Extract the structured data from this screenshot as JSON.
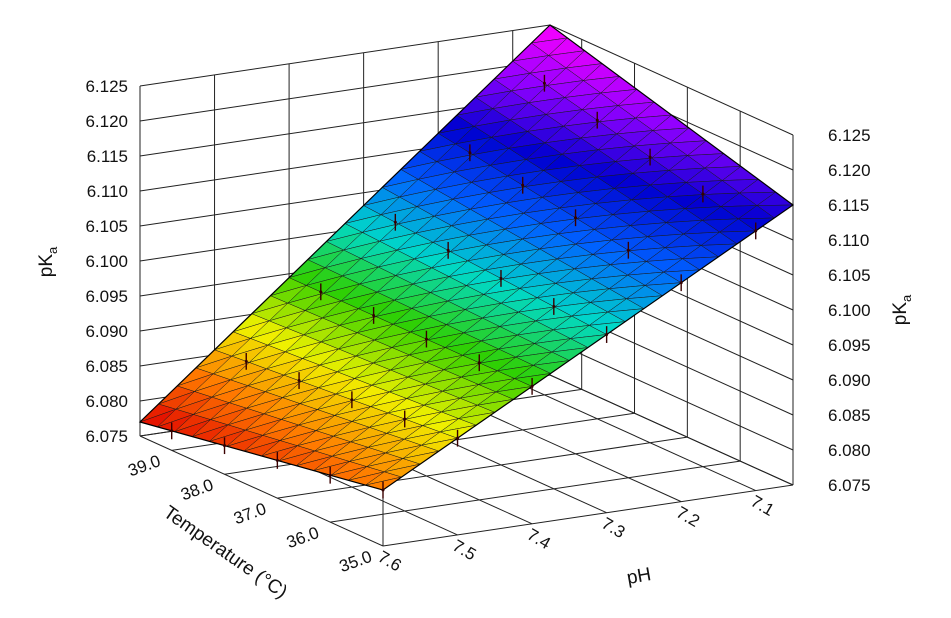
{
  "chart_data": {
    "type": "surface",
    "x_axis": {
      "label": "pH",
      "ticks": [
        "7.6",
        "7.5",
        "7.4",
        "7.3",
        "7.2",
        "7.1"
      ],
      "range": [
        7.05,
        7.6
      ]
    },
    "y_axis": {
      "label": "Temperature (°C)",
      "ticks": [
        "35.0",
        "36.0",
        "37.0",
        "38.0",
        "39.0"
      ],
      "range": [
        35.0,
        39.6
      ]
    },
    "z_axis": {
      "label_main": "pK",
      "label_sub": "a",
      "ticks": [
        "6.075",
        "6.080",
        "6.085",
        "6.090",
        "6.095",
        "6.100",
        "6.105",
        "6.110",
        "6.115",
        "6.120",
        "6.125"
      ],
      "range": [
        6.075,
        6.125
      ]
    },
    "surface": {
      "description_corners": [
        {
          "pH": 7.6,
          "temperature": 39.6,
          "pKa": 6.077
        },
        {
          "pH": 7.6,
          "temperature": 35.0,
          "pKa": 6.083
        },
        {
          "pH": 7.05,
          "temperature": 35.0,
          "pKa": 6.115
        },
        {
          "pH": 7.05,
          "temperature": 39.6,
          "pKa": 6.125
        }
      ]
    },
    "colormap": [
      "#e00000",
      "#ff7a00",
      "#f0f000",
      "#30d000",
      "#00d8c8",
      "#0060ff",
      "#0000d0",
      "#9000ff",
      "#ff00ff"
    ]
  }
}
